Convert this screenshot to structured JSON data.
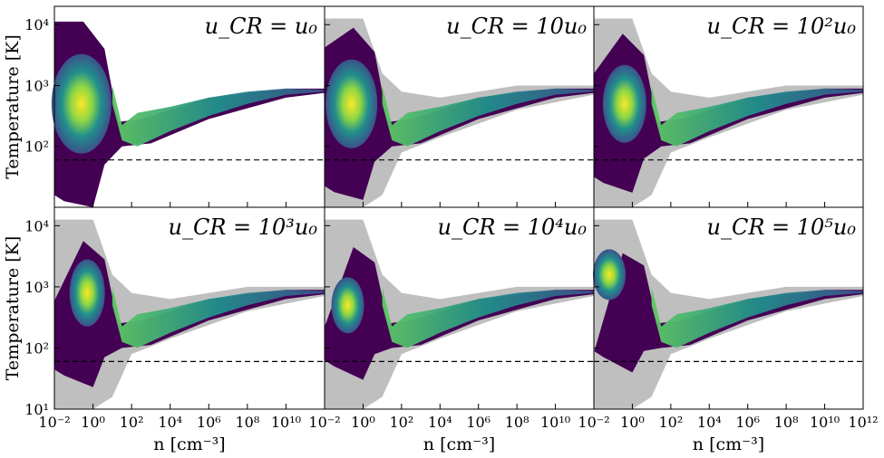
{
  "figure": {
    "xlabel": "n [cm⁻³]",
    "ylabel": "Temperature [K]"
  },
  "chart_data": {
    "type": "heatmap",
    "grid": false,
    "xscale": "log",
    "yscale": "log",
    "xlim": [
      0.01,
      1000000000000.0
    ],
    "ylim": [
      10,
      20000
    ],
    "xticks": [
      "10⁻²",
      "10⁰",
      "10²",
      "10⁴",
      "10⁶",
      "10⁸",
      "10¹⁰",
      "10¹²"
    ],
    "yticks": [
      "10¹",
      "10²",
      "10³",
      "10⁴"
    ],
    "reference_temperature_K": 60,
    "panels": [
      {
        "title": "u_CR = u₀",
        "reference_underlay": false
      },
      {
        "title": "u_CR = 10u₀",
        "reference_underlay": true
      },
      {
        "title": "u_CR = 10²u₀",
        "reference_underlay": true
      },
      {
        "title": "u_CR = 10³u₀",
        "reference_underlay": true
      },
      {
        "title": "u_CR = 10⁴u₀",
        "reference_underlay": true
      },
      {
        "title": "u_CR = 10⁵u₀",
        "reference_underlay": true
      }
    ],
    "colors": {
      "underlay": "#bfbfbf",
      "low": "#440154",
      "mid": "#21908c",
      "high": "#fde725"
    }
  }
}
